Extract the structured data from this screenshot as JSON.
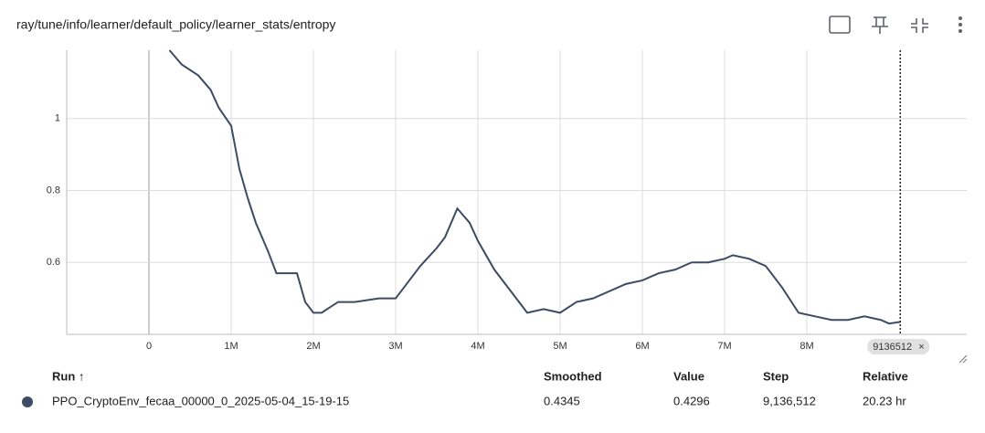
{
  "header": {
    "title": "ray/tune/info/learner/default_policy/learner_stats/entropy"
  },
  "chart_data": {
    "type": "line",
    "x": [
      250000,
      400000,
      600000,
      750000,
      850000,
      1000000,
      1100000,
      1200000,
      1300000,
      1450000,
      1550000,
      1700000,
      1800000,
      1900000,
      2000000,
      2100000,
      2300000,
      2500000,
      2800000,
      3000000,
      3100000,
      3300000,
      3500000,
      3600000,
      3750000,
      3900000,
      4000000,
      4200000,
      4400000,
      4600000,
      4800000,
      5000000,
      5200000,
      5400000,
      5600000,
      5800000,
      6000000,
      6200000,
      6400000,
      6600000,
      6800000,
      7000000,
      7100000,
      7300000,
      7500000,
      7700000,
      7900000,
      8100000,
      8300000,
      8500000,
      8700000,
      8900000,
      9000000,
      9136512
    ],
    "series": [
      {
        "name": "PPO_CryptoEnv_fecaa_00000_0_2025-05-04_15-19-15",
        "color": "#3d4b63",
        "values": [
          1.19,
          1.15,
          1.12,
          1.08,
          1.03,
          0.98,
          0.86,
          0.78,
          0.71,
          0.63,
          0.57,
          0.57,
          0.57,
          0.49,
          0.46,
          0.46,
          0.49,
          0.49,
          0.5,
          0.5,
          0.53,
          0.59,
          0.64,
          0.67,
          0.75,
          0.71,
          0.66,
          0.58,
          0.52,
          0.46,
          0.47,
          0.46,
          0.49,
          0.5,
          0.52,
          0.54,
          0.55,
          0.57,
          0.58,
          0.6,
          0.6,
          0.61,
          0.62,
          0.61,
          0.59,
          0.53,
          0.46,
          0.45,
          0.44,
          0.44,
          0.45,
          0.44,
          0.43,
          0.4345
        ]
      }
    ],
    "xlim": [
      -1000000,
      10000000
    ],
    "ylim": [
      0.4,
      1.19
    ],
    "xticks": [
      0,
      {
        "value": 1000000,
        "label": "1M"
      },
      {
        "value": 2000000,
        "label": "2M"
      },
      {
        "value": 3000000,
        "label": "3M"
      },
      {
        "value": 4000000,
        "label": "4M"
      },
      {
        "value": 5000000,
        "label": "5M"
      },
      {
        "value": 6000000,
        "label": "6M"
      },
      {
        "value": 7000000,
        "label": "7M"
      },
      {
        "value": 8000000,
        "label": "8M"
      }
    ],
    "yticks": [
      0.6,
      0.8,
      1
    ],
    "grid": true,
    "step_marker": 9136512
  },
  "table": {
    "headers": [
      "Run ↑",
      "Smoothed",
      "Value",
      "Step",
      "Relative"
    ],
    "rows": [
      [
        "PPO_CryptoEnv_fecaa_00000_0_2025-05-04_15-19-15",
        "0.4345",
        "0.4296",
        "9,136,512",
        "20.23 hr"
      ]
    ]
  }
}
